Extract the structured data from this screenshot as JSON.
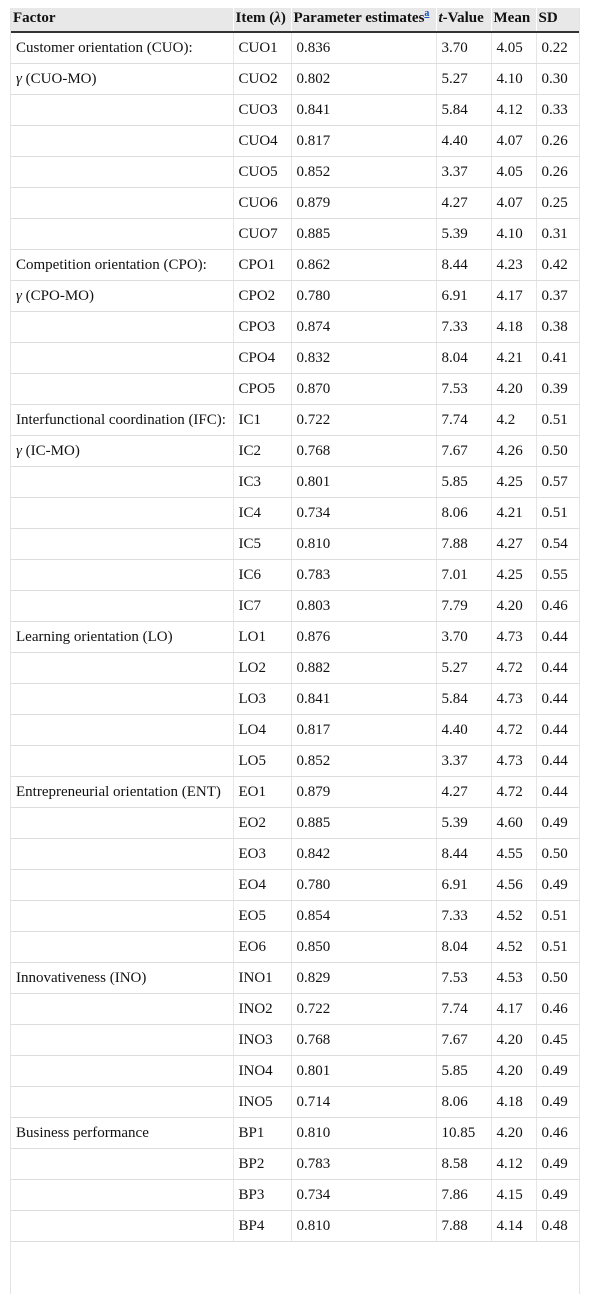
{
  "table": {
    "header": [
      [
        {
          "text": "Factor"
        }
      ],
      [
        {
          "text": "Item ("
        },
        {
          "text": "λ",
          "italic": true
        },
        {
          "text": ")"
        }
      ],
      [
        {
          "text": "Parameter estimates"
        },
        {
          "text": "a",
          "sup": true
        }
      ],
      [
        {
          "text": "t",
          "italic": true
        },
        {
          "text": "-Value"
        }
      ],
      [
        {
          "text": "Mean"
        }
      ],
      [
        {
          "text": "SD"
        }
      ]
    ],
    "rows": [
      [
        [
          {
            "text": "Customer orientation (CUO):"
          }
        ],
        "CUO1",
        "0.836",
        "3.70",
        "4.05",
        "0.22"
      ],
      [
        [
          {
            "text": "γ",
            "italic": true
          },
          {
            "text": " (CUO-MO)"
          }
        ],
        "CUO2",
        "0.802",
        "5.27",
        "4.10",
        "0.30"
      ],
      [
        null,
        "CUO3",
        "0.841",
        "5.84",
        "4.12",
        "0.33"
      ],
      [
        null,
        "CUO4",
        "0.817",
        "4.40",
        "4.07",
        "0.26"
      ],
      [
        null,
        "CUO5",
        "0.852",
        "3.37",
        "4.05",
        "0.26"
      ],
      [
        null,
        "CUO6",
        "0.879",
        "4.27",
        "4.07",
        "0.25"
      ],
      [
        null,
        "CUO7",
        "0.885",
        "5.39",
        "4.10",
        "0.31"
      ],
      [
        [
          {
            "text": "Competition orientation (CPO):"
          }
        ],
        "CPO1",
        "0.862",
        "8.44",
        "4.23",
        "0.42"
      ],
      [
        [
          {
            "text": "γ",
            "italic": true
          },
          {
            "text": " (CPO-MO)"
          }
        ],
        "CPO2",
        "0.780",
        "6.91",
        "4.17",
        "0.37"
      ],
      [
        null,
        "CPO3",
        "0.874",
        "7.33",
        "4.18",
        "0.38"
      ],
      [
        null,
        "CPO4",
        "0.832",
        "8.04",
        "4.21",
        "0.41"
      ],
      [
        null,
        "CPO5",
        "0.870",
        "7.53",
        "4.20",
        "0.39"
      ],
      [
        [
          {
            "text": "Interfunctional coordination (IFC):"
          }
        ],
        "IC1",
        "0.722",
        "7.74",
        "4.2",
        "0.51"
      ],
      [
        [
          {
            "text": "γ",
            "italic": true
          },
          {
            "text": " (IC-MO)"
          }
        ],
        "IC2",
        "0.768",
        "7.67",
        "4.26",
        "0.50"
      ],
      [
        null,
        "IC3",
        "0.801",
        "5.85",
        "4.25",
        "0.57"
      ],
      [
        null,
        "IC4",
        "0.734",
        "8.06",
        "4.21",
        "0.51"
      ],
      [
        null,
        "IC5",
        "0.810",
        "7.88",
        "4.27",
        "0.54"
      ],
      [
        null,
        "IC6",
        "0.783",
        "7.01",
        "4.25",
        "0.55"
      ],
      [
        null,
        "IC7",
        "0.803",
        "7.79",
        "4.20",
        "0.46"
      ],
      [
        [
          {
            "text": "Learning orientation (LO)"
          }
        ],
        "LO1",
        "0.876",
        "3.70",
        "4.73",
        "0.44"
      ],
      [
        null,
        "LO2",
        "0.882",
        "5.27",
        "4.72",
        "0.44"
      ],
      [
        null,
        "LO3",
        "0.841",
        "5.84",
        "4.73",
        "0.44"
      ],
      [
        null,
        "LO4",
        "0.817",
        "4.40",
        "4.72",
        "0.44"
      ],
      [
        null,
        "LO5",
        "0.852",
        "3.37",
        "4.73",
        "0.44"
      ],
      [
        [
          {
            "text": "Entrepreneurial orientation (ENT)"
          }
        ],
        "EO1",
        "0.879",
        "4.27",
        "4.72",
        "0.44"
      ],
      [
        null,
        "EO2",
        "0.885",
        "5.39",
        "4.60",
        "0.49"
      ],
      [
        null,
        "EO3",
        "0.842",
        "8.44",
        "4.55",
        "0.50"
      ],
      [
        null,
        "EO4",
        "0.780",
        "6.91",
        "4.56",
        "0.49"
      ],
      [
        null,
        "EO5",
        "0.854",
        "7.33",
        "4.52",
        "0.51"
      ],
      [
        null,
        "EO6",
        "0.850",
        "8.04",
        "4.52",
        "0.51"
      ],
      [
        [
          {
            "text": "Innovativeness (INO)"
          }
        ],
        "INO1",
        "0.829",
        "7.53",
        "4.53",
        "0.50"
      ],
      [
        null,
        "INO2",
        "0.722",
        "7.74",
        "4.17",
        "0.46"
      ],
      [
        null,
        "INO3",
        "0.768",
        "7.67",
        "4.20",
        "0.45"
      ],
      [
        null,
        "INO4",
        "0.801",
        "5.85",
        "4.20",
        "0.49"
      ],
      [
        null,
        "INO5",
        "0.714",
        "8.06",
        "4.18",
        "0.49"
      ],
      [
        [
          {
            "text": "Business performance"
          }
        ],
        "BP1",
        "0.810",
        "10.85",
        "4.20",
        "0.46"
      ],
      [
        null,
        "BP2",
        "0.783",
        "8.58",
        "4.12",
        "0.49"
      ],
      [
        null,
        "BP3",
        "0.734",
        "7.86",
        "4.15",
        "0.49"
      ],
      [
        null,
        "BP4",
        "0.810",
        "7.88",
        "4.14",
        "0.48"
      ]
    ]
  }
}
